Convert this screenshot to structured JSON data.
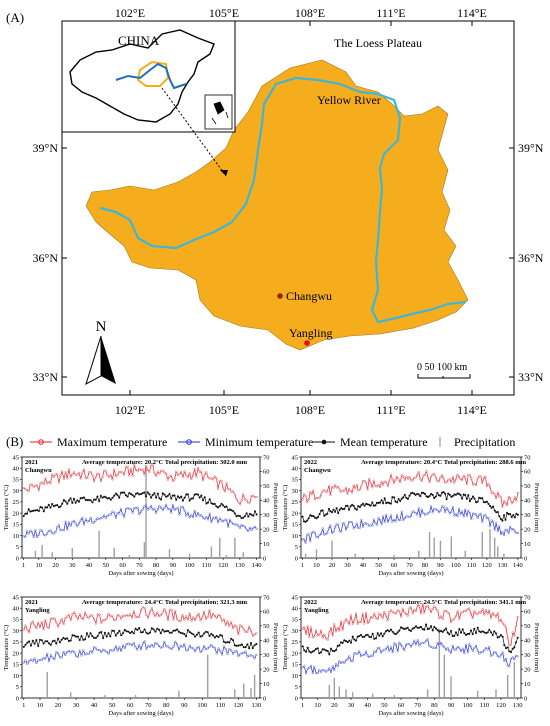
{
  "panel_a": {
    "label": "(A)",
    "lon_labels": [
      "102°E",
      "105°E",
      "108°E",
      "111°E",
      "114°E"
    ],
    "lat_labels": [
      "39°N",
      "36°N",
      "33°N"
    ],
    "region_label": "The Loess Plateau",
    "river_label": "Yellow River",
    "inset_label": "CHINA",
    "sites": [
      {
        "name": "Changwu",
        "color": "#8b2a1a"
      },
      {
        "name": "Yangling",
        "color": "#e01010"
      }
    ],
    "north_label": "N",
    "scale_label": "0   50 100 km",
    "colors": {
      "plateau": "#f5ad1e",
      "river": "#3fb6d6",
      "inset_border": "#f5ad1e",
      "inset_river": "#1f6fb8"
    }
  },
  "panel_b": {
    "label": "(B)",
    "legend": {
      "max": "Maximum temperature",
      "min": "Minimum temperature",
      "mean": "Mean temperature",
      "precip": "Precipitation"
    },
    "colors": {
      "max": "#e8202a",
      "min": "#1f2fd8",
      "mean": "#111111",
      "precip": "#a0a0a0"
    },
    "y_left_label": "Temperature (°C)",
    "y_right_label": "Precipitation (mm)",
    "x_label": "Days after sowing (days)"
  },
  "chart_data": [
    {
      "type": "line",
      "year": "2021",
      "site": "Changwu",
      "title": "Average temperature: 20.2°C   Total precipitation: 302.0 mm",
      "xlabel": "Days after sowing (days)",
      "ylabel": "Temperature (°C)",
      "y2label": "Precipitation (mm)",
      "xticks": [
        1,
        10,
        20,
        30,
        40,
        50,
        60,
        70,
        80,
        90,
        100,
        110,
        120,
        130,
        140
      ],
      "xlim": [
        0,
        142
      ],
      "ylim": [
        0,
        45
      ],
      "y2lim": [
        0,
        70
      ],
      "ytick_labels": [
        "0",
        "5",
        "10",
        "15",
        "20",
        "25",
        "30",
        "35",
        "40",
        "45"
      ],
      "y2tick_labels": [
        "0",
        "10",
        "20",
        "30",
        "40",
        "50",
        "60",
        "70"
      ],
      "series": [
        {
          "name": "Maximum temperature",
          "x": [
            1,
            15,
            30,
            45,
            60,
            75,
            90,
            105,
            120,
            130,
            140
          ],
          "values": [
            30,
            34,
            38,
            36,
            38,
            40,
            36,
            38,
            32,
            26,
            28
          ]
        },
        {
          "name": "Mean temperature",
          "x": [
            1,
            15,
            30,
            45,
            60,
            75,
            90,
            105,
            120,
            130,
            140
          ],
          "values": [
            20,
            22,
            26,
            26,
            28,
            28,
            27,
            27,
            23,
            19,
            20
          ]
        },
        {
          "name": "Minimum temperature",
          "x": [
            1,
            15,
            30,
            45,
            60,
            75,
            90,
            105,
            120,
            130,
            140
          ],
          "values": [
            10,
            12,
            15,
            18,
            20,
            22,
            22,
            19,
            17,
            13,
            12
          ]
        },
        {
          "name": "Precipitation",
          "x": [
            8,
            12,
            18,
            30,
            46,
            55,
            64,
            73,
            74,
            88,
            100,
            113,
            118,
            122,
            127,
            132
          ],
          "values": [
            5,
            9,
            4,
            7,
            19,
            7,
            2,
            11,
            62,
            6,
            3,
            8,
            14,
            2,
            14,
            4
          ]
        }
      ]
    },
    {
      "type": "line",
      "year": "2022",
      "site": "Changwu",
      "title": "Average temperature: 20.4°C   Total precipitation: 288.6 mm",
      "xlabel": "Days after sowing (days)",
      "ylabel": "Temperature (°C)",
      "y2label": "Precipitation (mm)",
      "xticks": [
        1,
        10,
        20,
        30,
        40,
        50,
        60,
        70,
        80,
        90,
        100,
        110,
        120,
        130,
        140
      ],
      "xlim": [
        0,
        142
      ],
      "ylim": [
        0,
        45
      ],
      "y2lim": [
        0,
        70
      ],
      "ytick_labels": [
        "0",
        "5",
        "10",
        "15",
        "20",
        "25",
        "30",
        "35",
        "40",
        "45"
      ],
      "y2tick_labels": [
        "0",
        "10",
        "20",
        "30",
        "40",
        "50",
        "60",
        "70"
      ],
      "series": [
        {
          "name": "Maximum temperature",
          "x": [
            1,
            15,
            30,
            45,
            60,
            75,
            90,
            105,
            120,
            130,
            140
          ],
          "values": [
            26,
            30,
            30,
            33,
            35,
            37,
            35,
            35,
            34,
            24,
            28
          ]
        },
        {
          "name": "Mean temperature",
          "x": [
            1,
            15,
            30,
            45,
            60,
            75,
            90,
            105,
            120,
            130,
            140
          ],
          "values": [
            17,
            20,
            22,
            24,
            26,
            28,
            28,
            27,
            25,
            18,
            20
          ]
        },
        {
          "name": "Minimum temperature",
          "x": [
            1,
            15,
            30,
            45,
            60,
            75,
            90,
            105,
            120,
            130,
            140
          ],
          "values": [
            8,
            12,
            14,
            16,
            18,
            20,
            22,
            20,
            17,
            12,
            12
          ]
        },
        {
          "name": "Precipitation",
          "x": [
            3,
            10,
            20,
            35,
            60,
            76,
            83,
            86,
            90,
            97,
            106,
            117,
            122,
            125,
            127,
            131
          ],
          "values": [
            3,
            6,
            12,
            3,
            2,
            5,
            18,
            14,
            12,
            15,
            5,
            18,
            20,
            14,
            8,
            3
          ]
        }
      ]
    },
    {
      "type": "line",
      "year": "2021",
      "site": "Yangling",
      "title": "Average temperature: 24.4°C   Total precipitation: 321.3 mm",
      "xlabel": "Days after sowing (days)",
      "ylabel": "Temperature (°C)",
      "y2label": "Precipitation (mm)",
      "xticks": [
        1,
        10,
        20,
        30,
        40,
        50,
        60,
        70,
        80,
        90,
        100,
        110,
        120,
        130
      ],
      "xlim": [
        0,
        132
      ],
      "ylim": [
        0,
        45
      ],
      "y2lim": [
        0,
        70
      ],
      "ytick_labels": [
        "0",
        "5",
        "10",
        "15",
        "20",
        "25",
        "30",
        "35",
        "40",
        "45"
      ],
      "y2tick_labels": [
        "0",
        "10",
        "20",
        "30",
        "40",
        "50",
        "60",
        "70"
      ],
      "series": [
        {
          "name": "Maximum temperature",
          "x": [
            1,
            15,
            30,
            45,
            60,
            75,
            90,
            105,
            120,
            130
          ],
          "values": [
            31,
            33,
            36,
            35,
            38,
            38,
            36,
            37,
            30,
            30
          ]
        },
        {
          "name": "Mean temperature",
          "x": [
            1,
            15,
            30,
            45,
            60,
            75,
            90,
            105,
            120,
            130
          ],
          "values": [
            24,
            25,
            27,
            28,
            30,
            30,
            29,
            28,
            24,
            23
          ]
        },
        {
          "name": "Minimum temperature",
          "x": [
            1,
            15,
            30,
            45,
            60,
            75,
            90,
            105,
            120,
            130
          ],
          "values": [
            15,
            18,
            20,
            21,
            23,
            24,
            23,
            22,
            20,
            19
          ]
        },
        {
          "name": "Precipitation",
          "x": [
            14,
            27,
            46,
            63,
            87,
            103,
            118,
            123,
            127,
            129
          ],
          "values": [
            18,
            4,
            2,
            2,
            5,
            30,
            6,
            10,
            7,
            16
          ]
        }
      ]
    },
    {
      "type": "line",
      "year": "2022",
      "site": "Yangling",
      "title": "Average temperature: 24.5°C   Total precipitation: 341.1 mm",
      "xlabel": "Days after sowing (days)",
      "ylabel": "Temperature (°C)",
      "y2label": "Precipitation (mm)",
      "xticks": [
        1,
        10,
        20,
        30,
        40,
        50,
        60,
        70,
        80,
        90,
        100,
        110,
        120,
        130
      ],
      "xlim": [
        0,
        132
      ],
      "ylim": [
        0,
        45
      ],
      "y2lim": [
        0,
        70
      ],
      "ytick_labels": [
        "0",
        "5",
        "10",
        "15",
        "20",
        "25",
        "30",
        "35",
        "40",
        "45"
      ],
      "y2tick_labels": [
        "0",
        "10",
        "20",
        "30",
        "40",
        "50",
        "60",
        "70"
      ],
      "series": [
        {
          "name": "Maximum temperature",
          "x": [
            1,
            15,
            30,
            45,
            60,
            75,
            90,
            105,
            120,
            125,
            130
          ],
          "values": [
            30,
            28,
            35,
            36,
            38,
            40,
            36,
            38,
            36,
            24,
            34
          ]
        },
        {
          "name": "Mean temperature",
          "x": [
            1,
            15,
            30,
            45,
            60,
            75,
            90,
            105,
            120,
            125,
            130
          ],
          "values": [
            22,
            20,
            26,
            28,
            30,
            32,
            29,
            30,
            28,
            20,
            26
          ]
        },
        {
          "name": "Minimum temperature",
          "x": [
            1,
            15,
            30,
            45,
            60,
            75,
            90,
            105,
            120,
            125,
            130
          ],
          "values": [
            13,
            12,
            18,
            21,
            23,
            25,
            22,
            22,
            20,
            15,
            19
          ]
        },
        {
          "name": "Precipitation",
          "x": [
            17,
            20,
            23,
            27,
            31,
            43,
            56,
            76,
            83,
            86,
            90,
            106,
            117,
            124,
            128
          ],
          "values": [
            9,
            14,
            8,
            6,
            4,
            3,
            2,
            6,
            48,
            30,
            15,
            5,
            6,
            16,
            25
          ]
        }
      ]
    }
  ]
}
